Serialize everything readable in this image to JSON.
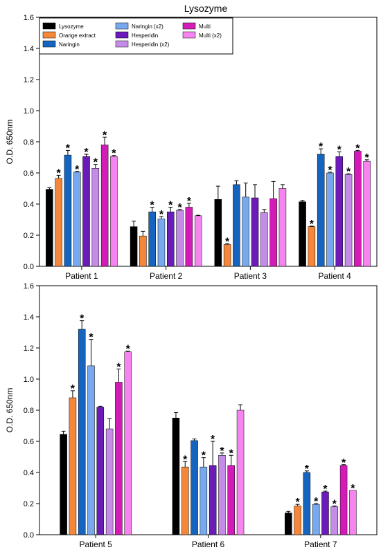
{
  "chart_data": [
    {
      "type": "bar",
      "title": "Lysozyme",
      "ylabel": "O.D. 650nm",
      "xlabel": "",
      "ylim": [
        0,
        1.6
      ],
      "yticks": [
        "0.0",
        "0.2",
        "0.4",
        "0.6",
        "0.8",
        "1.0",
        "1.2",
        "1.4",
        "1.6"
      ],
      "categories": [
        "Patient 1",
        "Patient 2",
        "Patient 3",
        "Patient 4"
      ],
      "legend_position": "top-left",
      "series": [
        {
          "name": "Lysozyme",
          "color": "#000000",
          "values": [
            0.495,
            0.255,
            0.43,
            0.415
          ],
          "errors": [
            0.01,
            0.035,
            0.085,
            0.008
          ],
          "sig": [
            false,
            false,
            false,
            false
          ]
        },
        {
          "name": "Orange extract",
          "color": "#f4873a",
          "values": [
            0.565,
            0.195,
            0.14,
            0.255
          ],
          "errors": [
            0.02,
            0.03,
            0.005,
            0.003
          ],
          "sig": [
            true,
            false,
            true,
            true
          ]
        },
        {
          "name": "Naringin",
          "color": "#1565c0",
          "values": [
            0.715,
            0.35,
            0.525,
            0.72
          ],
          "errors": [
            0.03,
            0.03,
            0.025,
            0.035
          ],
          "sig": [
            true,
            true,
            false,
            true
          ]
        },
        {
          "name": "Naringin (x2)",
          "color": "#78a8ee",
          "values": [
            0.605,
            0.305,
            0.445,
            0.6
          ],
          "errors": [
            0.005,
            0.015,
            0.09,
            0.005
          ],
          "sig": [
            true,
            true,
            false,
            true
          ]
        },
        {
          "name": "Hesperidin",
          "color": "#6a1bb8",
          "values": [
            0.705,
            0.35,
            0.44,
            0.705
          ],
          "errors": [
            0.015,
            0.03,
            0.085,
            0.03
          ],
          "sig": [
            true,
            true,
            false,
            true
          ]
        },
        {
          "name": "Hesperidin (x2)",
          "color": "#c58be8",
          "values": [
            0.63,
            0.36,
            0.345,
            0.59
          ],
          "errors": [
            0.025,
            0.005,
            0.02,
            0.005
          ],
          "sig": [
            true,
            true,
            false,
            true
          ]
        },
        {
          "name": "Multi",
          "color": "#d31bb8",
          "values": [
            0.78,
            0.38,
            0.435,
            0.74
          ],
          "errors": [
            0.05,
            0.025,
            0.11,
            0.005
          ],
          "sig": [
            true,
            true,
            false,
            true
          ]
        },
        {
          "name": "Multi (x2)",
          "color": "#f583f0",
          "values": [
            0.705,
            0.325,
            0.5,
            0.675
          ],
          "errors": [
            0.008,
            0.003,
            0.025,
            0.01
          ],
          "sig": [
            true,
            false,
            false,
            true
          ]
        }
      ]
    },
    {
      "type": "bar",
      "title": "",
      "ylabel": "O.D. 650nm",
      "xlabel": "",
      "ylim": [
        0,
        1.6
      ],
      "yticks": [
        "0.0",
        "0.2",
        "0.4",
        "0.6",
        "0.8",
        "1.0",
        "1.2",
        "1.4",
        "1.6"
      ],
      "categories": [
        "Patient 5",
        "Patient 6",
        "Patient 7"
      ],
      "series": [
        {
          "name": "Lysozyme",
          "color": "#000000",
          "values": [
            0.645,
            0.75,
            0.14
          ],
          "errors": [
            0.02,
            0.035,
            0.01
          ],
          "sig": [
            false,
            false,
            false
          ]
        },
        {
          "name": "Orange extract",
          "color": "#f4873a",
          "values": [
            0.88,
            0.435,
            0.185
          ],
          "errors": [
            0.045,
            0.035,
            0.01
          ],
          "sig": [
            true,
            true,
            true
          ]
        },
        {
          "name": "Naringin",
          "color": "#1565c0",
          "values": [
            1.32,
            0.605,
            0.4
          ],
          "errors": [
            0.055,
            0.01,
            0.01
          ],
          "sig": [
            true,
            false,
            true
          ]
        },
        {
          "name": "Naringin (x2)",
          "color": "#78a8ee",
          "values": [
            1.085,
            0.435,
            0.195
          ],
          "errors": [
            0.17,
            0.06,
            0.005
          ],
          "sig": [
            true,
            true,
            true
          ]
        },
        {
          "name": "Hesperidin",
          "color": "#6a1bb8",
          "values": [
            0.82,
            0.445,
            0.275
          ],
          "errors": [
            0.005,
            0.155,
            0.005
          ],
          "sig": [
            false,
            true,
            true
          ]
        },
        {
          "name": "Hesperidin (x2)",
          "color": "#c58be8",
          "values": [
            0.68,
            0.51,
            0.18
          ],
          "errors": [
            0.065,
            0.015,
            0.005
          ],
          "sig": [
            false,
            true,
            true
          ]
        },
        {
          "name": "Multi",
          "color": "#d31bb8",
          "values": [
            0.98,
            0.445,
            0.445
          ],
          "errors": [
            0.085,
            0.065,
            0.005
          ],
          "sig": [
            true,
            true,
            true
          ]
        },
        {
          "name": "Multi (x2)",
          "color": "#f583f0",
          "values": [
            1.175,
            0.8,
            0.285
          ],
          "errors": [
            0.005,
            0.035,
            0.0
          ],
          "sig": [
            true,
            false,
            true
          ]
        }
      ]
    }
  ]
}
